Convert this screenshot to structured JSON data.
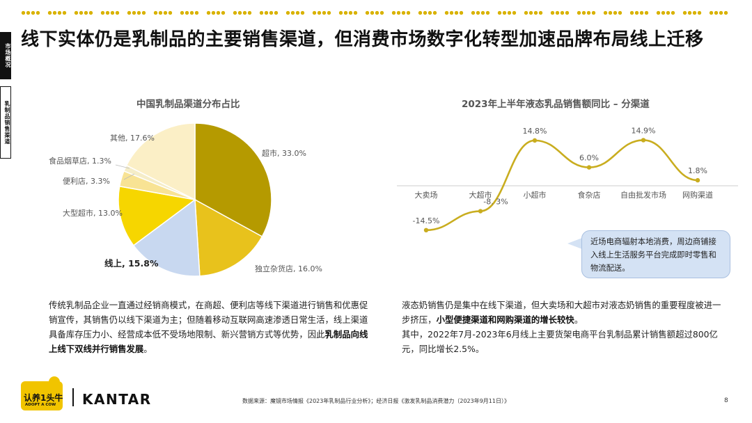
{
  "side_tabs": {
    "market": "市场概况",
    "dairy": "乳制品销售渠道"
  },
  "title": "线下实体仍是乳制品的主要销售渠道，但消费市场数字化转型加速品牌布局线上迁移",
  "pie": {
    "title": "中国乳制品渠道分布占比",
    "labels": [
      "超市, 33.0%",
      "独立杂货店, 16.0%",
      "线上, 15.8%",
      "大型超市, 13.0%",
      "便利店, 3.3%",
      "食品烟草店, 1.3%",
      "其他, 17.6%"
    ]
  },
  "line": {
    "title": "2023年上半年液态乳品销售额同比 – 分渠道",
    "value_labels": [
      "-14.5%",
      "-8. 3%",
      "14.8%",
      "6.0%",
      "14.9%",
      "1.8%"
    ]
  },
  "chart_data": [
    {
      "type": "pie",
      "title": "中国乳制品渠道分布占比",
      "categories": [
        "超市",
        "独立杂货店",
        "线上",
        "大型超市",
        "便利店",
        "食品烟草店",
        "其他"
      ],
      "values": [
        33.0,
        16.0,
        15.8,
        13.0,
        3.3,
        1.3,
        17.6
      ],
      "colors": [
        "#b59a00",
        "#e8c21c",
        "#c8d8f0",
        "#f6d600",
        "#f8e394",
        "#f5edc8",
        "#fbefc6"
      ]
    },
    {
      "type": "line",
      "title": "2023年上半年液态乳品销售额同比 – 分渠道",
      "categories": [
        "大卖场",
        "大超市",
        "小超市",
        "食杂店",
        "自由批发市场",
        "网购渠道"
      ],
      "values": [
        -14.5,
        -8.3,
        14.8,
        6.0,
        14.9,
        1.8
      ],
      "color": "#c9ad1f"
    }
  ],
  "callout": "近场电商辐射本地消费，周边商铺接入线上生活服务平台完成即时零售和物流配送。",
  "para_left": {
    "text1": "传统乳制品企业一直通过经销商模式，在商超、便利店等线下渠道进行销售和优惠促销宣传，其销售仍以线下渠道为主；但随着移动互联网高速渗透日常生活，线上渠道具备库存压力小、经营成本低不受场地限制、新兴营销方式等优势，因此",
    "bold1": "乳制品向线上线下双线并行销售发展",
    "text2": "。"
  },
  "para_right": {
    "text1": "液态奶销售仍是集中在线下渠道，但大卖场和大超市对液态奶销售的重要程度被进一步挤压，",
    "bold1": "小型便捷渠道和网购渠道的增长较快",
    "text2": "。",
    "text3": "其中，2022年7月-2023年6月线上主要货架电商平台乳制品累计销售额超过800亿元，同比增长2.5%。"
  },
  "footer": {
    "logo_text": "认养1头牛",
    "logo_sub": "ADOPT A COW",
    "brand": "KANTAR",
    "source": "数据来源：魔镜市场情报《2023年乳制品行业分析》；经济日报《激发乳制品消费潜力（2023年9月11日）》",
    "page": "8"
  },
  "colors": {
    "accent": "#d9b300",
    "line": "#c9ad1f",
    "callout_bg": "#d4e2f4"
  }
}
